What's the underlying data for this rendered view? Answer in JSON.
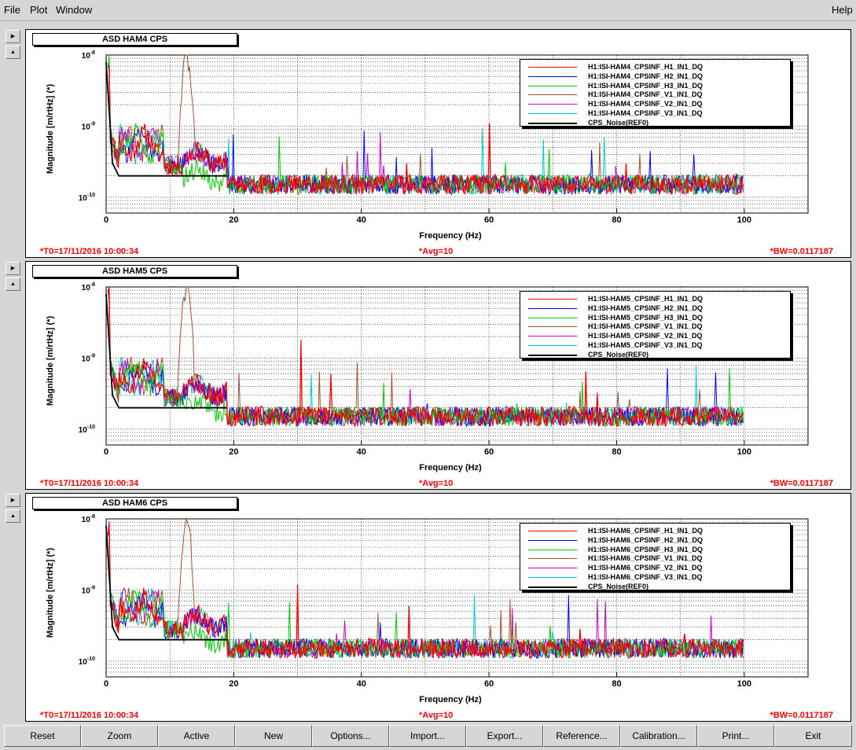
{
  "menu": {
    "file": "File",
    "plot": "Plot",
    "window": "Window",
    "help": "Help"
  },
  "panels": [
    {
      "title": "ASD HAM4 CPS",
      "ylabel": "Magnitude [m/rtHz] (*)",
      "xlabel": "Frequency (Hz)",
      "t0": "*T0=17/11/2016 10:00:34",
      "avg": "*Avg=10",
      "bw": "*BW=0.0117187",
      "legend": [
        {
          "name": "H1:ISI-HAM4_CPSINF_H1_IN1_DQ",
          "color": "#ff0000"
        },
        {
          "name": "H1:ISI-HAM4_CPSINF_H2_IN1_DQ",
          "color": "#0000ff"
        },
        {
          "name": "H1:ISI-HAM4_CPSINF_H3_IN1_DQ",
          "color": "#00cc00"
        },
        {
          "name": "H1:ISI-HAM4_CPSINF_V1_IN1_DQ",
          "color": "#a0522d"
        },
        {
          "name": "H1:ISI-HAM4_CPSINF_V2_IN1_DQ",
          "color": "#cc00cc"
        },
        {
          "name": "H1:ISI-HAM4_CPSINF_V3_IN1_DQ",
          "color": "#00cccc"
        },
        {
          "name": "CPS_Noise(REF0)",
          "color": "#000000"
        }
      ]
    },
    {
      "title": "ASD HAM5 CPS",
      "ylabel": "Magnitude [m/rtHz] (*)",
      "xlabel": "Frequency (Hz)",
      "t0": "*T0=17/11/2016 10:00:34",
      "avg": "*Avg=10",
      "bw": "*BW=0.0117187",
      "legend": [
        {
          "name": "H1:ISI-HAM5_CPSINF_H1_IN1_DQ",
          "color": "#ff0000"
        },
        {
          "name": "H1:ISI-HAM5_CPSINF_H2_IN1_DQ",
          "color": "#0000ff"
        },
        {
          "name": "H1:ISI-HAM5_CPSINF_H3_IN1_DQ",
          "color": "#00cc00"
        },
        {
          "name": "H1:ISI-HAM5_CPSINF_V1_IN1_DQ",
          "color": "#a0522d"
        },
        {
          "name": "H1:ISI-HAM5_CPSINF_V2_IN1_DQ",
          "color": "#cc00cc"
        },
        {
          "name": "H1:ISI-HAM5_CPSINF_V3_IN1_DQ",
          "color": "#00cccc"
        },
        {
          "name": "CPS_Noise(REF0)",
          "color": "#000000"
        }
      ]
    },
    {
      "title": "ASD HAM6 CPS",
      "ylabel": "Magnitude [m/rtHz] (*)",
      "xlabel": "Frequency (Hz)",
      "t0": "*T0=17/11/2016 10:00:34",
      "avg": "*Avg=10",
      "bw": "*BW=0.0117187",
      "legend": [
        {
          "name": "H1:ISI-HAM6_CPSINF_H1_IN1_DQ",
          "color": "#ff0000"
        },
        {
          "name": "H1:ISI-HAM6_CPSINF_H2_IN1_DQ",
          "color": "#0000ff"
        },
        {
          "name": "H1:ISI-HAM6_CPSINF_H3_IN1_DQ",
          "color": "#00cc00"
        },
        {
          "name": "H1:ISI-HAM6_CPSINF_V1_IN1_DQ",
          "color": "#a0522d"
        },
        {
          "name": "H1:ISI-HAM6_CPSINF_V2_IN1_DQ",
          "color": "#cc00cc"
        },
        {
          "name": "H1:ISI-HAM6_CPSINF_V3_IN1_DQ",
          "color": "#00cccc"
        },
        {
          "name": "CPS_Noise(REF0)",
          "color": "#000000"
        }
      ]
    }
  ],
  "buttons": {
    "reset": "Reset",
    "zoom": "Zoom",
    "active": "Active",
    "new": "New",
    "options": "Options...",
    "import": "Import...",
    "export": "Export...",
    "reference": "Reference...",
    "calibration": "Calibration...",
    "print": "Print...",
    "exit": "Exit"
  },
  "chart_data": [
    {
      "type": "line",
      "title": "ASD HAM4 CPS",
      "xlabel": "Frequency (Hz)",
      "ylabel": "Magnitude [m/rtHz] (*)",
      "xlim": [
        0,
        110
      ],
      "ylim": [
        6e-11,
        1e-08
      ],
      "yscale": "log",
      "xticks": [
        0,
        20,
        40,
        60,
        80,
        100
      ],
      "yticks": [
        "10^-10",
        "10^-9",
        "10^-8"
      ],
      "grid": true,
      "legend_position": "top-right",
      "reference_line": {
        "name": "CPS_Noise(REF0)",
        "x": [
          0,
          1,
          2,
          10,
          19
        ],
        "y": [
          8e-09,
          3e-10,
          2e-10,
          2e-10,
          2e-10
        ]
      },
      "noise_floor_approx": 1.5e-10,
      "peaks": [
        {
          "series": "V1",
          "x": 12.5,
          "y": 1e-08
        },
        {
          "series": "H1",
          "x": 60,
          "y": 1.1e-09
        }
      ]
    },
    {
      "type": "line",
      "title": "ASD HAM5 CPS",
      "xlabel": "Frequency (Hz)",
      "ylabel": "Magnitude [m/rtHz] (*)",
      "xlim": [
        0,
        110
      ],
      "ylim": [
        6e-11,
        1e-08
      ],
      "yscale": "log",
      "xticks": [
        0,
        20,
        40,
        60,
        80,
        100
      ],
      "yticks": [
        "10^-10",
        "10^-9",
        "10^-8"
      ],
      "grid": true,
      "legend_position": "top-right",
      "reference_line": {
        "name": "CPS_Noise(REF0)",
        "x": [
          0,
          1,
          2,
          10,
          19
        ],
        "y": [
          8e-09,
          3e-10,
          2e-10,
          2e-10,
          2e-10
        ]
      },
      "noise_floor_approx": 1.5e-10,
      "peaks": [
        {
          "series": "V1",
          "x": 12.5,
          "y": 1e-08
        },
        {
          "series": "H1",
          "x": 30.5,
          "y": 1.8e-09
        }
      ]
    },
    {
      "type": "line",
      "title": "ASD HAM6 CPS",
      "xlabel": "Frequency (Hz)",
      "ylabel": "Magnitude [m/rtHz] (*)",
      "xlim": [
        0,
        110
      ],
      "ylim": [
        6e-11,
        1e-08
      ],
      "yscale": "log",
      "xticks": [
        0,
        20,
        40,
        60,
        80,
        100
      ],
      "yticks": [
        "10^-10",
        "10^-9",
        "10^-8"
      ],
      "grid": true,
      "legend_position": "top-right",
      "reference_line": {
        "name": "CPS_Noise(REF0)",
        "x": [
          0,
          1,
          2,
          10,
          19
        ],
        "y": [
          8e-09,
          3e-10,
          2e-10,
          2e-10,
          2e-10
        ]
      },
      "noise_floor_approx": 1.5e-10,
      "peaks": [
        {
          "series": "V1",
          "x": 12.5,
          "y": 1e-08
        },
        {
          "series": "H1",
          "x": 30,
          "y": 1.2e-09
        }
      ]
    }
  ]
}
